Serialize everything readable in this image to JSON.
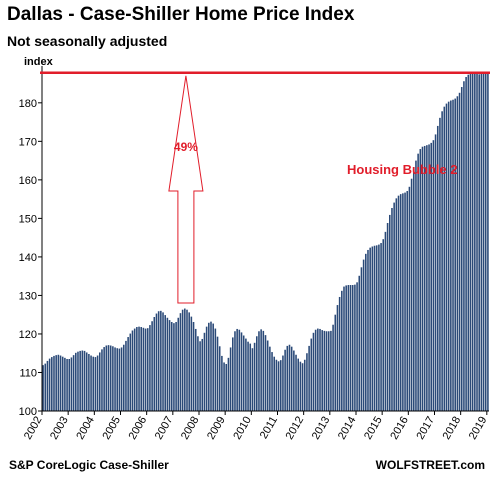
{
  "header": {
    "title": "Dallas - Case-Shiller Home Price Index",
    "subtitle": "Not seasonally adjusted"
  },
  "footer": {
    "source": "S&P CoreLogic Case-Shiller",
    "brand": "WOLFSTREET.com"
  },
  "colors": {
    "bars": "#2b4a78",
    "accent": "#e11d2a"
  },
  "chart_data": {
    "type": "bar",
    "ylabel": "index",
    "ylim": [
      100,
      188
    ],
    "yticks": [
      100,
      110,
      120,
      130,
      140,
      150,
      160,
      170,
      180
    ],
    "xticks": [
      "2002",
      "2003",
      "2004",
      "2005",
      "2006",
      "2007",
      "2008",
      "2009",
      "2010",
      "2011",
      "2012",
      "2013",
      "2014",
      "2015",
      "2016",
      "2017",
      "2018",
      "2019"
    ],
    "start": "2002-01",
    "grid": false,
    "annotations": {
      "peak_line_value": 187.8,
      "arrow_label": "49%",
      "bubble_label": "Housing Bubble 2"
    },
    "values": [
      111.9,
      112.3,
      113.0,
      113.6,
      114.0,
      114.3,
      114.5,
      114.6,
      114.4,
      114.1,
      113.8,
      113.5,
      113.5,
      113.9,
      114.5,
      115.1,
      115.4,
      115.6,
      115.7,
      115.6,
      115.2,
      114.8,
      114.4,
      114.1,
      114.0,
      114.4,
      115.2,
      116.0,
      116.6,
      117.0,
      117.1,
      117.0,
      116.8,
      116.5,
      116.3,
      116.2,
      116.5,
      117.2,
      118.2,
      119.2,
      120.1,
      120.9,
      121.4,
      121.8,
      121.9,
      121.8,
      121.6,
      121.4,
      121.5,
      122.3,
      123.3,
      124.4,
      125.3,
      125.9,
      126.0,
      125.6,
      124.9,
      124.2,
      123.6,
      123.1,
      122.8,
      123.1,
      124.2,
      125.4,
      126.3,
      126.6,
      126.3,
      125.6,
      124.5,
      123.1,
      121.3,
      119.4,
      118.1,
      118.7,
      120.3,
      121.9,
      122.9,
      123.2,
      122.7,
      121.4,
      119.3,
      116.8,
      114.3,
      112.6,
      112.2,
      113.8,
      116.5,
      119.1,
      120.7,
      121.3,
      121.1,
      120.4,
      119.6,
      118.8,
      118.0,
      117.5,
      116.3,
      117.7,
      119.4,
      120.7,
      121.2,
      120.8,
      119.7,
      118.3,
      116.7,
      115.3,
      114.1,
      113.3,
      112.9,
      113.2,
      114.4,
      115.9,
      116.9,
      117.2,
      116.7,
      115.7,
      114.6,
      113.6,
      112.8,
      112.4,
      113.3,
      115.0,
      116.9,
      118.8,
      120.3,
      121.1,
      121.4,
      121.3,
      121.0,
      120.8,
      120.7,
      120.7,
      120.8,
      122.4,
      125.0,
      127.5,
      129.6,
      131.2,
      132.3,
      132.6,
      132.7,
      132.7,
      132.7,
      132.8,
      133.4,
      135.1,
      137.3,
      139.3,
      140.8,
      141.8,
      142.4,
      142.7,
      142.9,
      143.0,
      143.2,
      143.6,
      144.6,
      146.5,
      148.8,
      150.9,
      152.7,
      154.1,
      155.2,
      155.9,
      156.3,
      156.5,
      156.7,
      157.1,
      158.2,
      160.3,
      162.7,
      165.0,
      166.8,
      168.0,
      168.6,
      168.8,
      169.0,
      169.2,
      169.6,
      170.3,
      171.8,
      174.0,
      176.1,
      177.8,
      179.0,
      179.8,
      180.3,
      180.6,
      180.8,
      181.1,
      181.7,
      182.6,
      184.1,
      185.6,
      186.7,
      187.3,
      187.5,
      187.6,
      187.6,
      187.5,
      187.4,
      187.5,
      187.6,
      187.8,
      187.8
    ]
  }
}
